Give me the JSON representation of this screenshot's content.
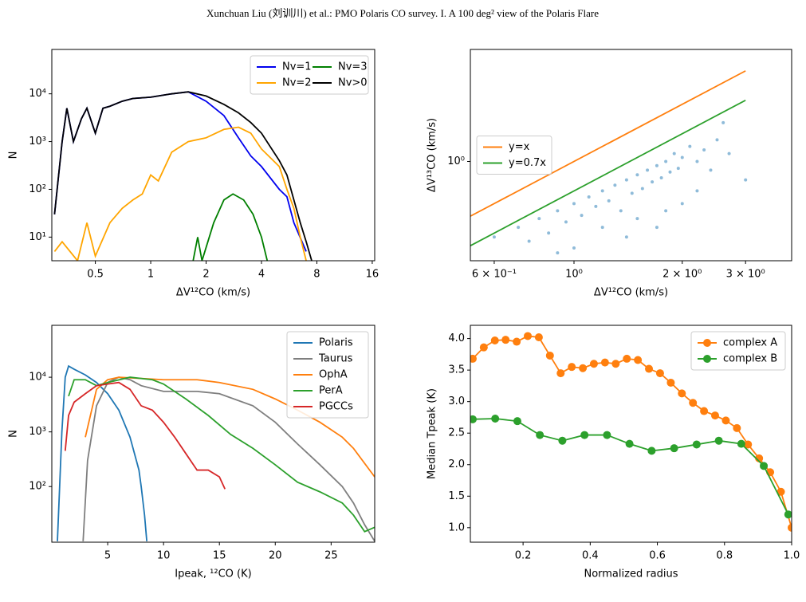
{
  "header": {
    "title": "Xunchuan Liu (刘训川) et al.: PMO Polaris CO survey. I. A 100 deg² view of the Polaris Flare"
  },
  "chart_data": [
    {
      "type": "line",
      "xlabel": "ΔV¹²CO (km/s)",
      "ylabel": "N",
      "xlog": true,
      "ylog": true,
      "xlim": [
        0.29,
        16.5
      ],
      "ylim": [
        3.2,
        85000
      ],
      "xticks": [
        0.5,
        1,
        2,
        4,
        8,
        16
      ],
      "yticks": [
        {
          "value": 10,
          "label": "10¹"
        },
        {
          "value": 100,
          "label": "10²"
        },
        {
          "value": 1000,
          "label": "10³"
        },
        {
          "value": 10000,
          "label": "10⁴"
        }
      ],
      "legend": "upper right",
      "legend_columns": 2,
      "series": [
        {
          "name": "Nv=1",
          "color": "#0000ee",
          "x": [
            0.3,
            0.33,
            0.35,
            0.38,
            0.42,
            0.45,
            0.5,
            0.55,
            0.6,
            0.7,
            0.8,
            1.0,
            1.3,
            1.6,
            2,
            2.5,
            3,
            3.5,
            4,
            5,
            5.5,
            6,
            7
          ],
          "values": [
            30,
            1000,
            5000,
            1000,
            3000,
            5000,
            1500,
            5000,
            5500,
            7000,
            8000,
            8500,
            10000,
            11000,
            7000,
            3500,
            1200,
            500,
            300,
            100,
            70,
            20,
            5
          ]
        },
        {
          "name": "Nv=2",
          "color": "#ffa500",
          "x": [
            0.3,
            0.33,
            0.4,
            0.45,
            0.5,
            0.6,
            0.7,
            0.8,
            0.9,
            1.0,
            1.1,
            1.3,
            1.6,
            2,
            2.5,
            3,
            3.5,
            4,
            5,
            5.5,
            6,
            6.5,
            7
          ],
          "values": [
            5,
            8,
            3.2,
            20,
            4,
            20,
            40,
            60,
            80,
            200,
            150,
            600,
            1000,
            1200,
            1800,
            2000,
            1500,
            700,
            300,
            100,
            40,
            10,
            3.2
          ]
        },
        {
          "name": "Nv=3",
          "color": "#007f00",
          "x": [
            1.7,
            1.8,
            1.9,
            2.2,
            2.5,
            2.8,
            3.2,
            3.6,
            4,
            4.3
          ],
          "values": [
            3.2,
            10,
            3.2,
            20,
            60,
            80,
            60,
            30,
            10,
            3.2
          ]
        },
        {
          "name": "Nv>0",
          "color": "#000000",
          "x": [
            0.3,
            0.33,
            0.35,
            0.38,
            0.42,
            0.45,
            0.5,
            0.55,
            0.6,
            0.7,
            0.8,
            1.0,
            1.3,
            1.6,
            2,
            2.5,
            3,
            3.5,
            4,
            5,
            5.5,
            6,
            6.5,
            7,
            7.5
          ],
          "values": [
            30,
            1000,
            5000,
            1000,
            3000,
            5000,
            1500,
            5000,
            5500,
            7000,
            8000,
            8500,
            10000,
            11000,
            9000,
            6000,
            4000,
            2500,
            1500,
            400,
            200,
            60,
            20,
            8,
            3.2
          ]
        }
      ]
    },
    {
      "type": "scatter",
      "xlabel": "ΔV¹²CO (km/s)",
      "ylabel": "ΔV¹³CO (km/s)",
      "xlog": true,
      "ylog": true,
      "xlim": [
        0.515,
        4.03
      ],
      "ylim": [
        0.3,
        3.89
      ],
      "xticks": [
        {
          "value": 0.6,
          "label": "6 × 10⁻¹"
        },
        {
          "value": 1,
          "label": "10⁰"
        },
        {
          "value": 2,
          "label": "2 × 10⁰"
        },
        {
          "value": 3,
          "label": "3 × 10⁰"
        }
      ],
      "yticks": [
        {
          "value": 1,
          "label": "10⁰"
        }
      ],
      "legend": "center left",
      "points": {
        "color": "#1f77b4",
        "x": [
          0.6,
          0.7,
          0.75,
          0.8,
          0.85,
          0.9,
          0.95,
          1.0,
          1.05,
          1.1,
          1.15,
          1.2,
          1.25,
          1.3,
          1.35,
          1.4,
          1.45,
          1.5,
          1.55,
          1.6,
          1.65,
          1.7,
          1.75,
          1.8,
          1.85,
          1.9,
          1.95,
          2.0,
          2.1,
          2.2,
          2.3,
          2.4,
          2.5,
          2.7,
          3.0,
          1.2,
          1.5,
          1.8,
          2.0,
          2.2,
          1.0,
          1.4,
          1.7,
          0.9,
          2.6
        ],
        "values": [
          0.4,
          0.45,
          0.38,
          0.5,
          0.42,
          0.55,
          0.48,
          0.6,
          0.52,
          0.65,
          0.58,
          0.7,
          0.62,
          0.75,
          0.55,
          0.8,
          0.68,
          0.85,
          0.72,
          0.9,
          0.78,
          0.95,
          0.82,
          1.0,
          0.88,
          1.1,
          0.92,
          1.05,
          1.2,
          1.0,
          1.15,
          0.9,
          1.3,
          1.1,
          0.8,
          0.45,
          0.5,
          0.55,
          0.6,
          0.7,
          0.35,
          0.4,
          0.45,
          0.33,
          1.6
        ]
      },
      "series": [
        {
          "name": "y=x",
          "color": "#ff7f0e",
          "x": [
            0.515,
            3
          ],
          "values": [
            0.515,
            3
          ]
        },
        {
          "name": "y=0.7x",
          "color": "#2ca02c",
          "x": [
            0.515,
            3
          ],
          "values": [
            0.36,
            2.1
          ]
        }
      ]
    },
    {
      "type": "line",
      "xlabel": "Ipeak, ¹²CO (K)",
      "ylabel": "N",
      "xlog": false,
      "ylog": true,
      "xlim": [
        0,
        28.9
      ],
      "ylim": [
        9.6,
        89000
      ],
      "xticks": [
        5,
        10,
        15,
        20,
        25
      ],
      "yticks": [
        {
          "value": 100,
          "label": "10²"
        },
        {
          "value": 1000,
          "label": "10³"
        },
        {
          "value": 10000,
          "label": "10⁴"
        }
      ],
      "legend": "upper right",
      "legend_columns": 1,
      "series": [
        {
          "name": "Polaris",
          "color": "#1f77b4",
          "x": [
            0.5,
            0.9,
            1.2,
            1.5,
            2,
            3,
            4,
            5,
            6,
            7,
            7.8,
            8,
            8.3,
            8.5
          ],
          "values": [
            10,
            1000,
            10000,
            16000,
            14000,
            11000,
            8000,
            5000,
            2500,
            800,
            200,
            100,
            30,
            10
          ]
        },
        {
          "name": "Taurus",
          "color": "#7f7f7f",
          "x": [
            2.8,
            3.2,
            4,
            5,
            6,
            7,
            8,
            10,
            13,
            15,
            18,
            20,
            22,
            24,
            26,
            27,
            28,
            28.9
          ],
          "values": [
            10,
            300,
            3000,
            8000,
            10000,
            9000,
            7000,
            5500,
            5500,
            5000,
            3000,
            1500,
            600,
            250,
            100,
            50,
            20,
            10
          ]
        },
        {
          "name": "OphA",
          "color": "#ff7f0e",
          "x": [
            3,
            4,
            5,
            6,
            8,
            10,
            13,
            15,
            18,
            20,
            22,
            24,
            26,
            27,
            28.9
          ],
          "values": [
            800,
            6000,
            9000,
            10000,
            9500,
            9000,
            9000,
            8000,
            6000,
            4000,
            2500,
            1500,
            800,
            500,
            150
          ]
        },
        {
          "name": "PerA",
          "color": "#2ca02c",
          "x": [
            1.5,
            2,
            3,
            4,
            5,
            7,
            9,
            10,
            12,
            14,
            16,
            18,
            20,
            22,
            24,
            26,
            27,
            28,
            28.9
          ],
          "values": [
            4500,
            9000,
            9000,
            7000,
            8000,
            10000,
            9000,
            7500,
            4000,
            2000,
            900,
            500,
            250,
            120,
            80,
            50,
            30,
            15,
            18
          ]
        },
        {
          "name": "PGCCs",
          "color": "#d62728",
          "x": [
            1.2,
            1.5,
            2,
            3,
            4,
            5,
            6,
            7,
            8,
            9,
            10,
            11,
            12,
            13,
            14,
            15,
            15.5
          ],
          "values": [
            450,
            2000,
            3500,
            5000,
            7000,
            7500,
            8000,
            6000,
            3000,
            2500,
            1500,
            800,
            400,
            200,
            200,
            150,
            90
          ]
        }
      ]
    },
    {
      "type": "line",
      "xlabel": "Normalized radius",
      "ylabel": "Median Tpeak (K)",
      "xlog": false,
      "ylog": false,
      "xlim": [
        0.043,
        1.0
      ],
      "ylim": [
        0.77,
        4.21
      ],
      "xticks": [
        0.2,
        0.4,
        0.6,
        0.8,
        {
          "value": 1,
          "label": "1.0"
        }
      ],
      "yticks": [
        {
          "value": 1,
          "label": "1.0"
        },
        1.5,
        {
          "value": 2,
          "label": "2.0"
        },
        2.5,
        {
          "value": 3,
          "label": "3.0"
        },
        3.5,
        {
          "value": 4,
          "label": "4.0"
        }
      ],
      "legend": "upper right",
      "legend_columns": 1,
      "markers": true,
      "series": [
        {
          "name": "complex A",
          "color": "#ff7f0e",
          "x": [
            0.05,
            0.083,
            0.116,
            0.148,
            0.181,
            0.214,
            0.247,
            0.28,
            0.312,
            0.345,
            0.378,
            0.411,
            0.444,
            0.476,
            0.509,
            0.542,
            0.575,
            0.608,
            0.64,
            0.673,
            0.706,
            0.739,
            0.772,
            0.804,
            0.837,
            0.87,
            0.903,
            0.936,
            0.968,
            1.0
          ],
          "values": [
            3.68,
            3.86,
            3.97,
            3.98,
            3.95,
            4.04,
            4.02,
            3.73,
            3.45,
            3.55,
            3.53,
            3.6,
            3.62,
            3.6,
            3.68,
            3.66,
            3.52,
            3.45,
            3.3,
            3.13,
            2.98,
            2.85,
            2.78,
            2.7,
            2.58,
            2.32,
            2.1,
            1.88,
            1.57,
            1.0
          ]
        },
        {
          "name": "complex B",
          "color": "#2ca02c",
          "x": [
            0.05,
            0.117,
            0.183,
            0.25,
            0.317,
            0.383,
            0.45,
            0.517,
            0.583,
            0.65,
            0.717,
            0.783,
            0.85,
            0.917,
            0.99
          ],
          "values": [
            2.72,
            2.73,
            2.69,
            2.47,
            2.38,
            2.47,
            2.47,
            2.33,
            2.22,
            2.26,
            2.32,
            2.38,
            2.33,
            1.98,
            1.21
          ]
        }
      ]
    }
  ]
}
